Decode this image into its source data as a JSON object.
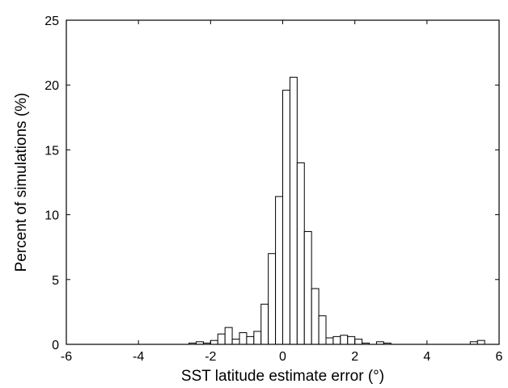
{
  "chart_data": {
    "type": "bar",
    "subtype": "histogram",
    "xlabel": "SST latitude estimate error (°)",
    "ylabel": "Percent of simulations (%)",
    "xlim": [
      -6,
      6
    ],
    "ylim": [
      0,
      25
    ],
    "x_ticks": [
      "-6",
      "-4",
      "-2",
      "0",
      "2",
      "4",
      "6"
    ],
    "y_ticks": [
      "0",
      "5",
      "10",
      "15",
      "20",
      "25"
    ],
    "bin_width": 0.2,
    "bins": [
      {
        "x0": -2.6,
        "value": 0.1
      },
      {
        "x0": -2.4,
        "value": 0.2
      },
      {
        "x0": -2.2,
        "value": 0.1
      },
      {
        "x0": -2.0,
        "value": 0.3
      },
      {
        "x0": -1.8,
        "value": 0.8
      },
      {
        "x0": -1.6,
        "value": 1.3
      },
      {
        "x0": -1.4,
        "value": 0.4
      },
      {
        "x0": -1.2,
        "value": 0.9
      },
      {
        "x0": -1.0,
        "value": 0.6
      },
      {
        "x0": -0.8,
        "value": 1.0
      },
      {
        "x0": -0.6,
        "value": 3.1
      },
      {
        "x0": -0.4,
        "value": 7.0
      },
      {
        "x0": -0.2,
        "value": 11.4
      },
      {
        "x0": 0.0,
        "value": 19.6
      },
      {
        "x0": 0.2,
        "value": 20.6
      },
      {
        "x0": 0.4,
        "value": 14.0
      },
      {
        "x0": 0.6,
        "value": 8.7
      },
      {
        "x0": 0.8,
        "value": 4.3
      },
      {
        "x0": 1.0,
        "value": 2.2
      },
      {
        "x0": 1.2,
        "value": 0.5
      },
      {
        "x0": 1.4,
        "value": 0.6
      },
      {
        "x0": 1.6,
        "value": 0.7
      },
      {
        "x0": 1.8,
        "value": 0.6
      },
      {
        "x0": 2.0,
        "value": 0.4
      },
      {
        "x0": 2.2,
        "value": 0.1
      },
      {
        "x0": 2.6,
        "value": 0.2
      },
      {
        "x0": 2.8,
        "value": 0.1
      },
      {
        "x0": 5.2,
        "value": 0.2
      },
      {
        "x0": 5.4,
        "value": 0.3
      }
    ],
    "grid": false,
    "bar_fill": "#ffffff",
    "bar_stroke": "#000000"
  }
}
